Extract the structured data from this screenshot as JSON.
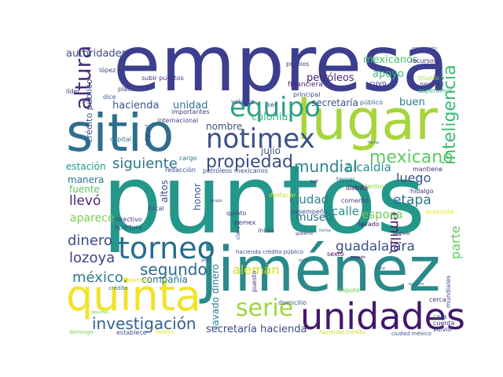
{
  "words": [
    {
      "text": "empresa",
      "color": "#3b3f8e"
    },
    {
      "text": "puntos",
      "color": "#23978a"
    },
    {
      "text": "sitio",
      "color": "#2e6f8e"
    },
    {
      "text": "lugar",
      "color": "#a5d63a"
    },
    {
      "text": "jiménez",
      "color": "#2a8a8a"
    },
    {
      "text": "quinta",
      "color": "#f0e32a"
    },
    {
      "text": "unidades",
      "color": "#43186d"
    },
    {
      "text": "notimex",
      "color": "#3c4f8a"
    },
    {
      "text": "torneo",
      "color": "#2a6d8e"
    },
    {
      "text": "equipo",
      "color": "#2c9e86"
    },
    {
      "text": "serie",
      "color": "#9fd43c"
    },
    {
      "text": "altura",
      "color": "#472c7a"
    },
    {
      "text": "inteligencia",
      "color": "#3aba76"
    },
    {
      "text": "propiedad",
      "color": "#3a4c8a"
    },
    {
      "text": "mundial",
      "color": "#2a858e"
    },
    {
      "text": "mexicano",
      "color": "#5ec962"
    },
    {
      "text": "siguiente",
      "color": "#2a768e"
    },
    {
      "text": "investigación",
      "color": "#33628d"
    },
    {
      "text": "segundo",
      "color": "#2f6b8e"
    },
    {
      "text": "guadalajara",
      "color": "#3b528b"
    },
    {
      "text": "dinero",
      "color": "#3e4a89"
    },
    {
      "text": "lozoya",
      "color": "#414287"
    },
    {
      "text": "méxico.",
      "color": "#2f7b8d"
    },
    {
      "text": "etapa",
      "color": "#2b748e"
    },
    {
      "text": "llevó",
      "color": "#482677"
    },
    {
      "text": "luego",
      "color": "#3b518b"
    },
    {
      "text": "emilio",
      "color": "#48186a"
    },
    {
      "text": "parte",
      "color": "#63cb5f"
    },
    {
      "text": "alemán",
      "color": "#d0e11c"
    },
    {
      "text": "ciudad",
      "color": "#27808e"
    },
    {
      "text": "secretaría hacienda",
      "color": "#3f4889"
    },
    {
      "text": "aparece",
      "color": "#7ad151"
    },
    {
      "text": "museo",
      "color": "#2c728e"
    },
    {
      "text": "calle",
      "color": "#21918c"
    },
    {
      "text": "esposa",
      "color": "#6ece58"
    },
    {
      "text": "colonia",
      "color": "#35b779"
    },
    {
      "text": "nombre",
      "color": "#3a538b"
    },
    {
      "text": "alcaldía",
      "color": "#2a8f8b"
    },
    {
      "text": "hacienda",
      "color": "#3b538b"
    },
    {
      "text": "unidad",
      "color": "#2c738e"
    },
    {
      "text": "autoridades",
      "color": "#3c4f8a"
    },
    {
      "text": "mexicanos",
      "color": "#48c16e"
    },
    {
      "text": "apoyo",
      "color": "#3dbc74"
    },
    {
      "text": "secretaría",
      "color": "#3e4c8a"
    },
    {
      "text": "buen",
      "color": "#287c8e"
    },
    {
      "text": "petróleos",
      "color": "#482878"
    },
    {
      "text": "fuente",
      "color": "#5ac864"
    },
    {
      "text": "manera",
      "color": "#2b758e"
    },
    {
      "text": "estación",
      "color": "#1f978b"
    },
    {
      "text": "compañía",
      "color": "#2c718e"
    },
    {
      "text": "honor",
      "color": "#365c8d"
    },
    {
      "text": "altos",
      "color": "#3f4788"
    },
    {
      "text": "julio",
      "color": "#3b528b"
    },
    {
      "text": "lavado dinero",
      "color": "#287d8e"
    },
    {
      "text": "crédito público",
      "color": "#3a548c"
    },
    {
      "text": "financiera",
      "color": "#481f70"
    },
    {
      "text": "redacción",
      "color": "#3f4889"
    },
    {
      "text": "petróleos mexicanos",
      "color": "#3b528b"
    },
    {
      "text": "importantes",
      "color": "#46337f"
    },
    {
      "text": "internacional",
      "color": "#433d84"
    },
    {
      "text": "capital",
      "color": "#2a778e"
    },
    {
      "text": "planta",
      "color": "#3e4989"
    },
    {
      "text": "líder",
      "color": "#463480"
    },
    {
      "text": "recursos",
      "color": "#48186a"
    },
    {
      "text": "propios",
      "color": "#453781"
    },
    {
      "text": "cuyo",
      "color": "#472d7b"
    },
    {
      "text": "público",
      "color": "#31688e"
    },
    {
      "text": "principal",
      "color": "#3e4989"
    },
    {
      "text": "general",
      "color": "#46307e"
    },
    {
      "text": "esperamos",
      "color": "#35b779"
    },
    {
      "text": "triunfo",
      "color": "#a8db34"
    },
    {
      "text": "dice",
      "color": "#38598c"
    },
    {
      "text": "subir puestos",
      "color": "#472f7d"
    },
    {
      "text": "miguel",
      "color": "#3e4a89"
    },
    {
      "text": "cargo",
      "color": "#2d708e"
    },
    {
      "text": "volante",
      "color": "#3d4e8a"
    },
    {
      "text": "ser",
      "color": "#3b528b"
    },
    {
      "text": "tercer",
      "color": "#31688e"
    },
    {
      "text": "dentro",
      "color": "#8bd646"
    },
    {
      "text": "hidalgo",
      "color": "#46327e"
    },
    {
      "text": "mantiene",
      "color": "#482878"
    },
    {
      "text": "presunto",
      "color": "#e5e419"
    },
    {
      "text": "desempeño",
      "color": "#3e4a89"
    },
    {
      "text": "distrito",
      "color": "#440154"
    },
    {
      "text": "comentó",
      "color": "#453882"
    },
    {
      "text": "quinto",
      "color": "#443983"
    },
    {
      "text": "pemex",
      "color": "#472a7a"
    },
    {
      "text": "inicio",
      "color": "#3f4788"
    },
    {
      "text": "destacar",
      "color": "#c2df23"
    },
    {
      "text": "depote",
      "color": "#6ece58"
    },
    {
      "text": "domicilio",
      "color": "#3a548c"
    },
    {
      "text": "cerca",
      "color": "#46327e"
    },
    {
      "text": "mundiales",
      "color": "#3b528b"
    },
    {
      "text": "cuenta",
      "color": "#472f7d"
    },
    {
      "text": "volvió",
      "color": "#3e4989"
    },
    {
      "text": "cara",
      "color": "#2c728e"
    },
    {
      "text": "ciudad méxico",
      "color": "#3b528b"
    },
    {
      "text": "hacienda crédito",
      "color": "#c8e020"
    },
    {
      "text": "hacienda crédito público",
      "color": "#3f4889"
    },
    {
      "text": "sexto",
      "color": "#440154"
    },
    {
      "text": "lavado",
      "color": "#48186a"
    },
    {
      "text": "apertura",
      "color": "#3b528b"
    },
    {
      "text": "directivo",
      "color": "#443983"
    },
    {
      "text": "fiscal",
      "color": "#3e4a89"
    },
    {
      "text": "crédito",
      "color": "#2d708e"
    },
    {
      "text": "objetivos",
      "color": "#d5e21a"
    },
    {
      "text": "establece",
      "color": "#3b528b"
    },
    {
      "text": "domingo",
      "color": "#7ad151"
    },
    {
      "text": "finales",
      "color": "#e5e419"
    },
    {
      "text": "puesto",
      "color": "#46307e"
    },
    {
      "text": "origen",
      "color": "#2c728e"
    },
    {
      "text": "claro",
      "color": "#3b528b"
    },
    {
      "text": "sur",
      "color": "#472f7d"
    },
    {
      "text": "lópez",
      "color": "#3e4989"
    },
    {
      "text": "organización",
      "color": "#3b528b"
    },
    {
      "text": "forma",
      "color": "#31688e"
    },
    {
      "text": "mercado",
      "color": "#472a7a"
    },
    {
      "text": "pagado",
      "color": "#440154"
    },
    {
      "text": "años",
      "color": "#3e4a89"
    },
    {
      "text": "gobierno",
      "color": "#46327e"
    },
    {
      "text": "hace",
      "color": "#3b528b"
    },
    {
      "text": "deportes",
      "color": "#6ece58"
    },
    {
      "text": "equipos",
      "color": "#2c728e"
    },
    {
      "text": "fecha",
      "color": "#31688e"
    },
    {
      "text": "grupo",
      "color": "#3e4989"
    },
    {
      "text": "bajo",
      "color": "#2d708e"
    }
  ]
}
